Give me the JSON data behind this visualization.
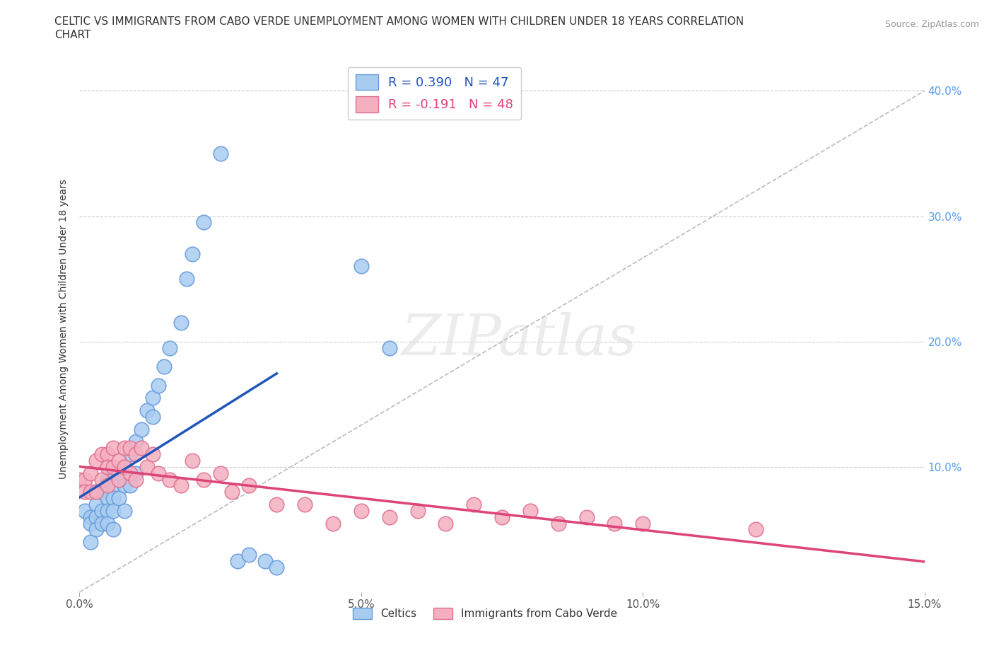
{
  "title_line1": "CELTIC VS IMMIGRANTS FROM CABO VERDE UNEMPLOYMENT AMONG WOMEN WITH CHILDREN UNDER 18 YEARS CORRELATION",
  "title_line2": "CHART",
  "source": "Source: ZipAtlas.com",
  "ylabel": "Unemployment Among Women with Children Under 18 years",
  "xlim": [
    0.0,
    0.15
  ],
  "ylim": [
    0.0,
    0.42
  ],
  "xticks": [
    0.0,
    0.05,
    0.1,
    0.15
  ],
  "xtick_labels": [
    "0.0%",
    "5.0%",
    "10.0%",
    "15.0%"
  ],
  "yticks": [
    0.0,
    0.1,
    0.2,
    0.3,
    0.4
  ],
  "ytick_labels_right": [
    "",
    "10.0%",
    "20.0%",
    "30.0%",
    "40.0%"
  ],
  "celtics_color": "#A8CCF0",
  "celtics_edge": "#6699DD",
  "cabo_color": "#F5B0C0",
  "cabo_edge": "#E07090",
  "blue_line_color": "#2255BB",
  "pink_line_color": "#DD4477",
  "diag_line_color": "#BBBBBB",
  "grid_color": "#CCCCCC",
  "legend1_text": "R = 0.390   N = 47",
  "legend2_text": "R = -0.191   N = 48",
  "legend1_color": "#2255BB",
  "legend2_color": "#DD4477",
  "celtics_label": "Celtics",
  "cabo_label": "Immigrants from Cabo Verde",
  "watermark": "ZIPatlas",
  "celtics_x": [
    0.001,
    0.002,
    0.002,
    0.002,
    0.003,
    0.003,
    0.003,
    0.003,
    0.004,
    0.004,
    0.004,
    0.005,
    0.005,
    0.005,
    0.005,
    0.006,
    0.006,
    0.006,
    0.006,
    0.006,
    0.007,
    0.007,
    0.008,
    0.008,
    0.008,
    0.009,
    0.009,
    0.01,
    0.01,
    0.011,
    0.012,
    0.013,
    0.013,
    0.014,
    0.015,
    0.016,
    0.018,
    0.019,
    0.02,
    0.022,
    0.025,
    0.028,
    0.03,
    0.033,
    0.035,
    0.05,
    0.055
  ],
  "celtics_y": [
    0.065,
    0.06,
    0.055,
    0.04,
    0.08,
    0.07,
    0.06,
    0.05,
    0.08,
    0.065,
    0.055,
    0.09,
    0.075,
    0.065,
    0.055,
    0.095,
    0.085,
    0.075,
    0.065,
    0.05,
    0.095,
    0.075,
    0.1,
    0.085,
    0.065,
    0.11,
    0.085,
    0.12,
    0.095,
    0.13,
    0.145,
    0.155,
    0.14,
    0.165,
    0.18,
    0.195,
    0.215,
    0.25,
    0.27,
    0.295,
    0.35,
    0.025,
    0.03,
    0.025,
    0.02,
    0.26,
    0.195
  ],
  "cabo_x": [
    0.0,
    0.001,
    0.001,
    0.002,
    0.002,
    0.003,
    0.003,
    0.004,
    0.004,
    0.005,
    0.005,
    0.005,
    0.006,
    0.006,
    0.007,
    0.007,
    0.008,
    0.008,
    0.009,
    0.009,
    0.01,
    0.01,
    0.011,
    0.012,
    0.013,
    0.014,
    0.016,
    0.018,
    0.02,
    0.022,
    0.025,
    0.027,
    0.03,
    0.035,
    0.04,
    0.045,
    0.05,
    0.055,
    0.06,
    0.065,
    0.07,
    0.075,
    0.08,
    0.085,
    0.09,
    0.095,
    0.1,
    0.12
  ],
  "cabo_y": [
    0.09,
    0.09,
    0.08,
    0.095,
    0.08,
    0.105,
    0.08,
    0.11,
    0.09,
    0.11,
    0.1,
    0.085,
    0.115,
    0.1,
    0.105,
    0.09,
    0.115,
    0.1,
    0.115,
    0.095,
    0.11,
    0.09,
    0.115,
    0.1,
    0.11,
    0.095,
    0.09,
    0.085,
    0.105,
    0.09,
    0.095,
    0.08,
    0.085,
    0.07,
    0.07,
    0.055,
    0.065,
    0.06,
    0.065,
    0.055,
    0.07,
    0.06,
    0.065,
    0.055,
    0.06,
    0.055,
    0.055,
    0.05
  ]
}
